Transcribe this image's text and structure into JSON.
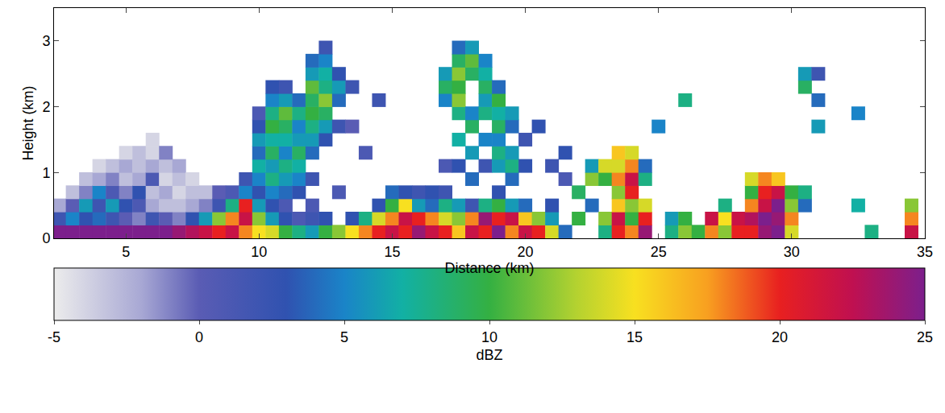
{
  "chart_data": {
    "type": "heatmap",
    "x_label": "Distance (km)",
    "y_label": "Height (km)",
    "xlim": [
      2.3,
      35
    ],
    "ylim": [
      0,
      3.5
    ],
    "xticks": [
      5,
      10,
      15,
      20,
      25,
      30,
      35
    ],
    "yticks": [
      0,
      1,
      2,
      3
    ],
    "colorbar": {
      "title": "dBZ",
      "range": [
        -5,
        25
      ],
      "ticks": [
        -5,
        0,
        5,
        10,
        15,
        20,
        25
      ]
    },
    "cells": [
      [
        2.5,
        0.1,
        25
      ],
      [
        2.5,
        0.3,
        2
      ],
      [
        2.5,
        0.5,
        -2
      ],
      [
        3.0,
        0.1,
        25
      ],
      [
        3.0,
        0.3,
        5
      ],
      [
        3.0,
        0.5,
        0
      ],
      [
        3.0,
        0.7,
        -3
      ],
      [
        3.5,
        0.1,
        25
      ],
      [
        3.5,
        0.3,
        3
      ],
      [
        3.5,
        0.5,
        6
      ],
      [
        3.5,
        0.7,
        -1
      ],
      [
        3.5,
        0.9,
        -3
      ],
      [
        4.0,
        0.1,
        25
      ],
      [
        4.0,
        0.3,
        4
      ],
      [
        4.0,
        0.5,
        2
      ],
      [
        4.0,
        0.7,
        5
      ],
      [
        4.0,
        0.9,
        -2
      ],
      [
        4.0,
        1.1,
        -4
      ],
      [
        4.5,
        0.1,
        25
      ],
      [
        4.5,
        0.3,
        2
      ],
      [
        4.5,
        0.5,
        6
      ],
      [
        4.5,
        0.7,
        1
      ],
      [
        4.5,
        0.9,
        -1
      ],
      [
        4.5,
        1.1,
        -3
      ],
      [
        5.0,
        0.1,
        25
      ],
      [
        5.0,
        0.3,
        0
      ],
      [
        5.0,
        0.5,
        3
      ],
      [
        5.0,
        0.7,
        -1
      ],
      [
        5.0,
        0.9,
        -3
      ],
      [
        5.0,
        1.1,
        -2
      ],
      [
        5.0,
        1.3,
        -4
      ],
      [
        5.5,
        0.1,
        25
      ],
      [
        5.5,
        0.3,
        -1
      ],
      [
        5.5,
        0.5,
        1
      ],
      [
        5.5,
        0.7,
        3
      ],
      [
        5.5,
        0.9,
        -2
      ],
      [
        5.5,
        1.1,
        -3
      ],
      [
        5.5,
        1.3,
        -3
      ],
      [
        6.0,
        0.1,
        25
      ],
      [
        6.0,
        0.3,
        2
      ],
      [
        6.0,
        0.5,
        -2
      ],
      [
        6.0,
        0.7,
        -3
      ],
      [
        6.0,
        0.9,
        1
      ],
      [
        6.0,
        1.1,
        -2
      ],
      [
        6.0,
        1.3,
        -4
      ],
      [
        6.0,
        1.5,
        -4
      ],
      [
        6.5,
        0.1,
        25
      ],
      [
        6.5,
        0.3,
        0
      ],
      [
        6.5,
        0.5,
        -3
      ],
      [
        6.5,
        0.7,
        -2
      ],
      [
        6.5,
        0.9,
        -4
      ],
      [
        6.5,
        1.1,
        -3
      ],
      [
        6.5,
        1.3,
        -1
      ],
      [
        7.0,
        0.1,
        24
      ],
      [
        7.0,
        0.3,
        -1
      ],
      [
        7.0,
        0.5,
        -3
      ],
      [
        7.0,
        0.7,
        -4
      ],
      [
        7.0,
        0.9,
        -3
      ],
      [
        7.0,
        1.1,
        -2
      ],
      [
        7.5,
        0.1,
        23
      ],
      [
        7.5,
        0.3,
        3
      ],
      [
        7.5,
        0.5,
        -2
      ],
      [
        7.5,
        0.7,
        -3
      ],
      [
        7.5,
        0.9,
        -4
      ],
      [
        8.0,
        0.1,
        22
      ],
      [
        8.0,
        0.3,
        6
      ],
      [
        8.0,
        0.5,
        -1
      ],
      [
        8.0,
        0.7,
        -3
      ],
      [
        8.5,
        0.1,
        20
      ],
      [
        8.5,
        0.3,
        12
      ],
      [
        8.5,
        0.5,
        2
      ],
      [
        8.5,
        0.7,
        0
      ],
      [
        9.0,
        0.1,
        22
      ],
      [
        9.0,
        0.3,
        18
      ],
      [
        9.0,
        0.5,
        8
      ],
      [
        9.0,
        0.7,
        1
      ],
      [
        9.5,
        0.1,
        18
      ],
      [
        9.5,
        0.3,
        22
      ],
      [
        9.5,
        0.5,
        20
      ],
      [
        9.5,
        0.7,
        5
      ],
      [
        9.5,
        0.9,
        2
      ],
      [
        10.0,
        0.1,
        15
      ],
      [
        10.0,
        0.3,
        12
      ],
      [
        10.0,
        0.5,
        6
      ],
      [
        10.0,
        0.7,
        3
      ],
      [
        10.0,
        0.9,
        5
      ],
      [
        10.0,
        1.1,
        7
      ],
      [
        10.0,
        1.3,
        4
      ],
      [
        10.0,
        1.5,
        6
      ],
      [
        10.0,
        1.7,
        3
      ],
      [
        10.0,
        1.9,
        1
      ],
      [
        10.5,
        0.1,
        14
      ],
      [
        10.5,
        0.3,
        6
      ],
      [
        10.5,
        0.5,
        3
      ],
      [
        10.5,
        0.7,
        5
      ],
      [
        10.5,
        0.9,
        8
      ],
      [
        10.5,
        1.1,
        6
      ],
      [
        10.5,
        1.3,
        9
      ],
      [
        10.5,
        1.5,
        7
      ],
      [
        10.5,
        1.7,
        10
      ],
      [
        10.5,
        1.9,
        8
      ],
      [
        10.5,
        2.1,
        5
      ],
      [
        10.5,
        2.3,
        3
      ],
      [
        11.0,
        0.1,
        10
      ],
      [
        11.0,
        0.3,
        3
      ],
      [
        11.0,
        0.5,
        1
      ],
      [
        11.0,
        0.7,
        4
      ],
      [
        11.0,
        0.9,
        6
      ],
      [
        11.0,
        1.1,
        8
      ],
      [
        11.0,
        1.3,
        5
      ],
      [
        11.0,
        1.5,
        7
      ],
      [
        11.0,
        1.7,
        9
      ],
      [
        11.0,
        1.9,
        11
      ],
      [
        11.0,
        2.1,
        6
      ],
      [
        11.0,
        2.3,
        2
      ],
      [
        11.5,
        0.1,
        8
      ],
      [
        11.5,
        0.3,
        1
      ],
      [
        11.5,
        0.7,
        3
      ],
      [
        11.5,
        0.9,
        5
      ],
      [
        11.5,
        1.1,
        7
      ],
      [
        11.5,
        1.3,
        9
      ],
      [
        11.5,
        1.5,
        6
      ],
      [
        11.5,
        1.7,
        5
      ],
      [
        11.5,
        1.9,
        8
      ],
      [
        11.5,
        2.1,
        4
      ],
      [
        12.0,
        0.1,
        6
      ],
      [
        12.0,
        0.3,
        2
      ],
      [
        12.0,
        0.5,
        1
      ],
      [
        12.0,
        0.9,
        2
      ],
      [
        12.0,
        1.3,
        4
      ],
      [
        12.0,
        1.5,
        6
      ],
      [
        12.0,
        1.7,
        8
      ],
      [
        12.0,
        1.9,
        10
      ],
      [
        12.0,
        2.1,
        9
      ],
      [
        12.0,
        2.3,
        11
      ],
      [
        12.0,
        2.5,
        6
      ],
      [
        12.0,
        2.7,
        4
      ],
      [
        12.5,
        0.1,
        10
      ],
      [
        12.5,
        0.3,
        3
      ],
      [
        12.5,
        1.5,
        3
      ],
      [
        12.5,
        1.7,
        6
      ],
      [
        12.5,
        1.9,
        9
      ],
      [
        12.5,
        2.1,
        12
      ],
      [
        12.5,
        2.3,
        8
      ],
      [
        12.5,
        2.5,
        7
      ],
      [
        12.5,
        2.7,
        5
      ],
      [
        12.5,
        2.9,
        2
      ],
      [
        13.0,
        0.1,
        12
      ],
      [
        13.0,
        0.7,
        1
      ],
      [
        13.0,
        1.7,
        2
      ],
      [
        13.0,
        2.1,
        4
      ],
      [
        13.0,
        2.3,
        6
      ],
      [
        13.0,
        2.5,
        3
      ],
      [
        13.5,
        0.1,
        15
      ],
      [
        13.5,
        0.3,
        3
      ],
      [
        13.5,
        1.7,
        0
      ],
      [
        13.5,
        2.3,
        2
      ],
      [
        14.0,
        0.1,
        18
      ],
      [
        14.0,
        0.3,
        8
      ],
      [
        14.0,
        1.3,
        1
      ],
      [
        14.5,
        0.1,
        20
      ],
      [
        14.5,
        0.3,
        14
      ],
      [
        14.5,
        0.5,
        3
      ],
      [
        14.5,
        2.1,
        2
      ],
      [
        15.0,
        0.1,
        22
      ],
      [
        15.0,
        0.3,
        18
      ],
      [
        15.0,
        0.5,
        10
      ],
      [
        15.0,
        0.7,
        4
      ],
      [
        15.5,
        0.1,
        20
      ],
      [
        15.5,
        0.3,
        22
      ],
      [
        15.5,
        0.5,
        15
      ],
      [
        15.5,
        0.7,
        3
      ],
      [
        16.0,
        0.1,
        24
      ],
      [
        16.0,
        0.3,
        20
      ],
      [
        16.0,
        0.5,
        6
      ],
      [
        16.0,
        0.7,
        2
      ],
      [
        16.5,
        0.1,
        22
      ],
      [
        16.5,
        0.3,
        18
      ],
      [
        16.5,
        0.5,
        4
      ],
      [
        16.5,
        0.7,
        3
      ],
      [
        17.0,
        0.1,
        20
      ],
      [
        17.0,
        0.3,
        14
      ],
      [
        17.0,
        0.5,
        8
      ],
      [
        17.0,
        0.7,
        2
      ],
      [
        17.0,
        1.1,
        1
      ],
      [
        17.0,
        2.1,
        5
      ],
      [
        17.0,
        2.3,
        9
      ],
      [
        17.0,
        2.5,
        6
      ],
      [
        17.5,
        0.1,
        16
      ],
      [
        17.5,
        0.3,
        12
      ],
      [
        17.5,
        0.5,
        6
      ],
      [
        17.5,
        1.1,
        3
      ],
      [
        17.5,
        1.5,
        7
      ],
      [
        17.5,
        1.9,
        8
      ],
      [
        17.5,
        2.1,
        12
      ],
      [
        17.5,
        2.3,
        10
      ],
      [
        17.5,
        2.5,
        12
      ],
      [
        17.5,
        2.7,
        9
      ],
      [
        17.5,
        2.9,
        4
      ],
      [
        18.0,
        0.1,
        22
      ],
      [
        18.0,
        0.3,
        18
      ],
      [
        18.0,
        0.5,
        2
      ],
      [
        18.0,
        0.9,
        4
      ],
      [
        18.0,
        1.3,
        6
      ],
      [
        18.0,
        1.7,
        9
      ],
      [
        18.0,
        1.9,
        5
      ],
      [
        18.0,
        2.5,
        9
      ],
      [
        18.0,
        2.7,
        11
      ],
      [
        18.0,
        2.9,
        6
      ],
      [
        18.5,
        0.1,
        20
      ],
      [
        18.5,
        0.3,
        24
      ],
      [
        18.5,
        0.5,
        8
      ],
      [
        18.5,
        1.1,
        2
      ],
      [
        18.5,
        1.5,
        5
      ],
      [
        18.5,
        1.9,
        8
      ],
      [
        18.5,
        2.1,
        6
      ],
      [
        18.5,
        2.3,
        9
      ],
      [
        18.5,
        2.5,
        7
      ],
      [
        18.5,
        2.7,
        5
      ],
      [
        19.0,
        0.1,
        25
      ],
      [
        19.0,
        0.3,
        20
      ],
      [
        19.0,
        0.5,
        10
      ],
      [
        19.0,
        0.7,
        3
      ],
      [
        19.0,
        1.1,
        6
      ],
      [
        19.0,
        1.3,
        8
      ],
      [
        19.0,
        1.5,
        5
      ],
      [
        19.0,
        1.7,
        9
      ],
      [
        19.0,
        1.9,
        7
      ],
      [
        19.0,
        2.1,
        10
      ],
      [
        19.0,
        2.3,
        4
      ],
      [
        19.5,
        0.1,
        18
      ],
      [
        19.5,
        0.3,
        22
      ],
      [
        19.5,
        0.5,
        6
      ],
      [
        19.5,
        0.9,
        4
      ],
      [
        19.5,
        1.1,
        8
      ],
      [
        19.5,
        1.3,
        6
      ],
      [
        19.5,
        1.7,
        4
      ],
      [
        19.5,
        1.9,
        6
      ],
      [
        20.0,
        0.1,
        22
      ],
      [
        20.0,
        0.3,
        16
      ],
      [
        20.0,
        0.5,
        4
      ],
      [
        20.0,
        1.1,
        3
      ],
      [
        20.0,
        1.5,
        2
      ],
      [
        20.5,
        0.1,
        20
      ],
      [
        20.5,
        0.3,
        12
      ],
      [
        20.5,
        1.7,
        3
      ],
      [
        21.0,
        0.1,
        14
      ],
      [
        21.0,
        0.3,
        6
      ],
      [
        21.0,
        0.5,
        3
      ],
      [
        21.0,
        1.1,
        2
      ],
      [
        21.5,
        0.1,
        4
      ],
      [
        21.5,
        0.9,
        1
      ],
      [
        21.5,
        1.3,
        3
      ],
      [
        22.0,
        0.3,
        10
      ],
      [
        22.0,
        0.7,
        9
      ],
      [
        22.5,
        0.5,
        4
      ],
      [
        22.5,
        0.9,
        12
      ],
      [
        22.5,
        1.1,
        6
      ],
      [
        23.0,
        0.1,
        8
      ],
      [
        23.0,
        0.3,
        12
      ],
      [
        23.0,
        0.9,
        10
      ],
      [
        23.0,
        1.1,
        14
      ],
      [
        23.5,
        0.1,
        20
      ],
      [
        23.5,
        0.3,
        22
      ],
      [
        23.5,
        0.5,
        16
      ],
      [
        23.5,
        0.7,
        12
      ],
      [
        23.5,
        0.9,
        18
      ],
      [
        23.5,
        1.1,
        14
      ],
      [
        23.5,
        1.3,
        16
      ],
      [
        24.0,
        0.1,
        18
      ],
      [
        24.0,
        0.3,
        10
      ],
      [
        24.0,
        0.5,
        12
      ],
      [
        24.0,
        0.7,
        20
      ],
      [
        24.0,
        0.9,
        22
      ],
      [
        24.0,
        1.1,
        18
      ],
      [
        24.0,
        1.3,
        14
      ],
      [
        24.5,
        0.1,
        24
      ],
      [
        24.5,
        0.3,
        20
      ],
      [
        24.5,
        0.5,
        14
      ],
      [
        24.5,
        0.9,
        8
      ],
      [
        24.5,
        1.1,
        4
      ],
      [
        25.0,
        1.7,
        5
      ],
      [
        25.5,
        0.1,
        8
      ],
      [
        25.5,
        0.3,
        6
      ],
      [
        26.0,
        0.1,
        12
      ],
      [
        26.0,
        0.3,
        10
      ],
      [
        26.0,
        2.1,
        8
      ],
      [
        26.5,
        0.1,
        10
      ],
      [
        27.0,
        0.1,
        18
      ],
      [
        27.0,
        0.3,
        22
      ],
      [
        27.5,
        0.1,
        12
      ],
      [
        27.5,
        0.3,
        15
      ],
      [
        27.5,
        0.5,
        8
      ],
      [
        28.0,
        0.1,
        20
      ],
      [
        28.0,
        0.3,
        22
      ],
      [
        28.5,
        0.1,
        20
      ],
      [
        28.5,
        0.3,
        23
      ],
      [
        28.5,
        0.5,
        18
      ],
      [
        28.5,
        0.7,
        10
      ],
      [
        28.5,
        0.9,
        14
      ],
      [
        29.0,
        0.1,
        24
      ],
      [
        29.0,
        0.3,
        25
      ],
      [
        29.0,
        0.5,
        22
      ],
      [
        29.0,
        0.7,
        20
      ],
      [
        29.0,
        0.9,
        18
      ],
      [
        29.5,
        0.1,
        25
      ],
      [
        29.5,
        0.3,
        24
      ],
      [
        29.5,
        0.5,
        25
      ],
      [
        29.5,
        0.7,
        22
      ],
      [
        29.5,
        0.9,
        16
      ],
      [
        30.0,
        0.1,
        14
      ],
      [
        30.0,
        0.3,
        18
      ],
      [
        30.0,
        0.5,
        12
      ],
      [
        30.0,
        0.7,
        10
      ],
      [
        30.5,
        0.5,
        4
      ],
      [
        30.5,
        0.7,
        8
      ],
      [
        30.5,
        2.3,
        9
      ],
      [
        30.5,
        2.5,
        6
      ],
      [
        31.0,
        1.7,
        6
      ],
      [
        31.0,
        2.1,
        4
      ],
      [
        31.0,
        2.5,
        2
      ],
      [
        32.5,
        0.5,
        7
      ],
      [
        32.5,
        1.9,
        5
      ],
      [
        33.0,
        0.1,
        8
      ],
      [
        34.5,
        0.1,
        22
      ],
      [
        34.5,
        0.3,
        18
      ],
      [
        34.5,
        0.5,
        12
      ]
    ]
  }
}
